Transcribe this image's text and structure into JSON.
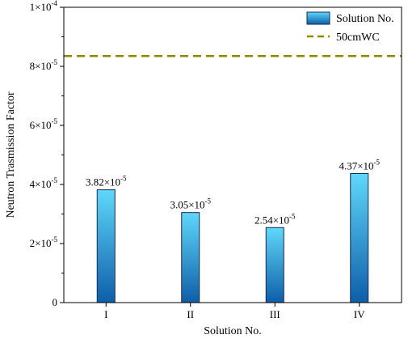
{
  "chart_data": {
    "type": "bar",
    "xlabel": "Solution No.",
    "ylabel": "Neutron Trasmission Factor",
    "categories": [
      "I",
      "II",
      "III",
      "IV"
    ],
    "series": [
      {
        "name": "Solution No.",
        "values": [
          3.82e-05,
          3.05e-05,
          2.54e-05,
          4.37e-05
        ],
        "labels": [
          {
            "mantissa": "3.82×10",
            "exp": "-5"
          },
          {
            "mantissa": "3.05×10",
            "exp": "-5"
          },
          {
            "mantissa": "2.54×10",
            "exp": "-5"
          },
          {
            "mantissa": "4.37×10",
            "exp": "-5"
          }
        ]
      }
    ],
    "reference_line": {
      "name": "50cmWC",
      "value": 8.35e-05,
      "style": "dashed",
      "color": "#8b8b00"
    },
    "ylim": [
      0,
      0.0001
    ],
    "yticks": [
      {
        "value": 0,
        "mantissa": "0",
        "exp": ""
      },
      {
        "value": 2e-05,
        "mantissa": "2×10",
        "exp": "-5"
      },
      {
        "value": 4e-05,
        "mantissa": "4×10",
        "exp": "-5"
      },
      {
        "value": 6e-05,
        "mantissa": "6×10",
        "exp": "-5"
      },
      {
        "value": 8e-05,
        "mantissa": "8×10",
        "exp": "-5"
      },
      {
        "value": 0.0001,
        "mantissa": "1×10",
        "exp": "-4"
      }
    ],
    "legend_position": "top-right",
    "grid": false,
    "colors": {
      "bar_top": "#5fd8fa",
      "bar_bottom": "#0d5ea8",
      "bar_edge": "#1a2a4a",
      "reference": "#8b8b00"
    }
  }
}
